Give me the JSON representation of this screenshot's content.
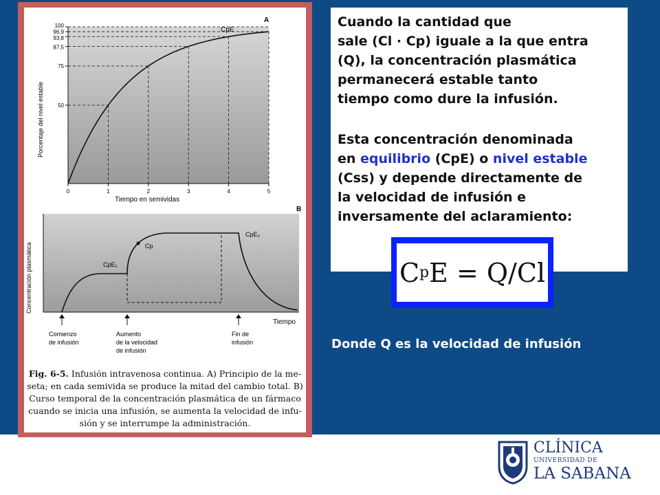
{
  "figure": {
    "panel_a": {
      "label": "A",
      "curve_label": "CpE",
      "ylabel": "Porcentaje del nivel estable",
      "xlabel": "Tiempo en semividas",
      "yticks": [
        "100",
        "96,9",
        "93,8",
        "87,5",
        "75",
        "50"
      ],
      "xticks": [
        "0",
        "1",
        "2",
        "3",
        "4",
        "5"
      ]
    },
    "panel_b": {
      "label": "B",
      "ylabel": "Concentración plasmática",
      "xlabel": "Tiempo",
      "label_cpe1": "CpE₁",
      "label_cpe2": "CpE₂",
      "label_cp": "Cp",
      "event_start_1": "Comienzo",
      "event_start_2": "de infusión",
      "event_increase_1": "Aumento",
      "event_increase_2": "de la velocidad",
      "event_increase_3": "de infusión",
      "event_end_1": "Fin de",
      "event_end_2": "infusión"
    },
    "caption": {
      "fig_label": "Fig. 6-5.",
      "line1": "Infusión intravenosa continua. A) Principio de la me-",
      "line2": "seta; en cada semivida se produce la mitad del cambio total. B)",
      "line3": "Curso temporal de la concentración plasmática de un fármaco",
      "line4": "cuando se inicia una infusión, se aumenta la velocidad de infu-",
      "line5": "sión y se interrumpe la administración."
    }
  },
  "chart_data": {
    "type": "line",
    "x": [
      0,
      1,
      2,
      3,
      4,
      5
    ],
    "values": [
      0,
      50,
      75,
      87.5,
      93.8,
      96.9
    ],
    "xlabel": "Tiempo en semividas",
    "ylabel": "Porcentaje del nivel estable",
    "xlim": [
      0,
      5
    ],
    "ylim": [
      0,
      100
    ]
  },
  "text": {
    "p1_l1": "Cuando la cantidad que",
    "p1_l2": "sale (Cl · Cp) iguale a la que entra",
    "p1_l3": "(Q), la concentración plasmática",
    "p1_l4": "permanecerá estable tanto",
    "p1_l5": "tiempo como dure la infusión.",
    "p2_l1": "Esta concentración denominada",
    "p2_l2_a": "en ",
    "p2_l2_hl1": "equilibrio",
    "p2_l2_b": " (CpE) o ",
    "p2_l2_hl2": "nivel estable",
    "p2_l3": "(Css) y  depende directamente de",
    "p2_l4": "la velocidad de infusión e",
    "p2_l5": "inversamente del aclaramiento:"
  },
  "formula": {
    "c": "C",
    "sub": "p",
    "rest": "E = Q/Cl"
  },
  "footnote": "Donde Q es la velocidad de infusión",
  "logo": {
    "line1": "CLÍNICA",
    "line2": "UNIVERSIDAD DE",
    "line3": "LA SABANA"
  },
  "colors": {
    "background": "#0e4a86",
    "frame": "#c45e5e",
    "highlight": "#1f2fd0",
    "formula_border": "#0a22ff",
    "logo": "#1f3a7a"
  }
}
